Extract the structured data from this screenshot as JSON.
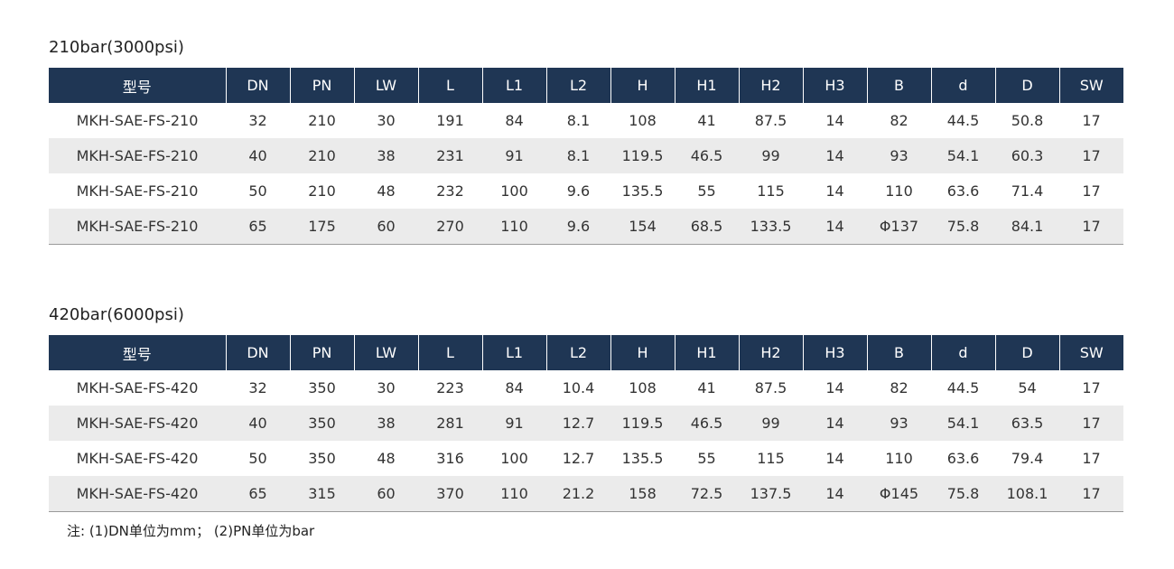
{
  "columns": [
    "型号",
    "DN",
    "PN",
    "LW",
    "L",
    "L1",
    "L2",
    "H",
    "H1",
    "H2",
    "H3",
    "B",
    "d",
    "D",
    "SW"
  ],
  "tables": [
    {
      "title": "210bar(3000psi)",
      "rows": [
        [
          "MKH-SAE-FS-210",
          "32",
          "210",
          "30",
          "191",
          "84",
          "8.1",
          "108",
          "41",
          "87.5",
          "14",
          "82",
          "44.5",
          "50.8",
          "17"
        ],
        [
          "MKH-SAE-FS-210",
          "40",
          "210",
          "38",
          "231",
          "91",
          "8.1",
          "119.5",
          "46.5",
          "99",
          "14",
          "93",
          "54.1",
          "60.3",
          "17"
        ],
        [
          "MKH-SAE-FS-210",
          "50",
          "210",
          "48",
          "232",
          "100",
          "9.6",
          "135.5",
          "55",
          "115",
          "14",
          "110",
          "63.6",
          "71.4",
          "17"
        ],
        [
          "MKH-SAE-FS-210",
          "65",
          "175",
          "60",
          "270",
          "110",
          "9.6",
          "154",
          "68.5",
          "133.5",
          "14",
          "Φ137",
          "75.8",
          "84.1",
          "17"
        ]
      ]
    },
    {
      "title": "420bar(6000psi)",
      "rows": [
        [
          "MKH-SAE-FS-420",
          "32",
          "350",
          "30",
          "223",
          "84",
          "10.4",
          "108",
          "41",
          "87.5",
          "14",
          "82",
          "44.5",
          "54",
          "17"
        ],
        [
          "MKH-SAE-FS-420",
          "40",
          "350",
          "38",
          "281",
          "91",
          "12.7",
          "119.5",
          "46.5",
          "99",
          "14",
          "93",
          "54.1",
          "63.5",
          "17"
        ],
        [
          "MKH-SAE-FS-420",
          "50",
          "350",
          "48",
          "316",
          "100",
          "12.7",
          "135.5",
          "55",
          "115",
          "14",
          "110",
          "63.6",
          "79.4",
          "17"
        ],
        [
          "MKH-SAE-FS-420",
          "65",
          "315",
          "60",
          "370",
          "110",
          "21.2",
          "158",
          "72.5",
          "137.5",
          "14",
          "Φ145",
          "75.8",
          "108.1",
          "17"
        ]
      ]
    }
  ],
  "note": "注: (1)DN单位为mm； (2)PN单位为bar",
  "colors": {
    "header_bg": "#1f3654",
    "header_text": "#ffffff",
    "stripe": "#ebebeb"
  }
}
